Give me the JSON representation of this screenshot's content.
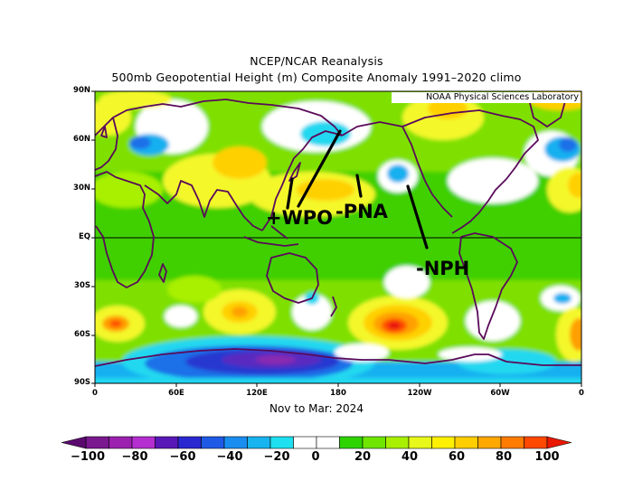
{
  "titles": {
    "line1": "NCEP/NCAR Reanalysis",
    "line2": "500mb Geopotential Height (m) Composite Anomaly 1991–2020 climo"
  },
  "credit": "NOAA Physical Sciences Laboratory",
  "period": "Nov to Mar: 2024",
  "y_axis_labels": [
    "90N",
    "60N",
    "30N",
    "EQ",
    "30S",
    "60S",
    "90S"
  ],
  "x_axis_labels": [
    "0",
    "60E",
    "120E",
    "180",
    "120W",
    "60W",
    "0"
  ],
  "annotations": {
    "wpo": "+WPO",
    "pna": "-PNA",
    "nph": "-NPH"
  },
  "colorbar": {
    "labels": [
      "−100",
      "−80",
      "−60",
      "−40",
      "−20",
      "0",
      "20",
      "40",
      "60",
      "80",
      "100"
    ],
    "colors": [
      "#5a0a6e",
      "#7a1890",
      "#9c20b0",
      "#b42ed0",
      "#5818b8",
      "#2a28d0",
      "#1e5ae6",
      "#1a8ef0",
      "#18b4f0",
      "#1ee0f0",
      "#ffffff",
      "#ffffff",
      "#2ed400",
      "#6ee600",
      "#a8f000",
      "#e8f81a",
      "#fff000",
      "#ffce00",
      "#ffa800",
      "#ff7c00",
      "#ff4800",
      "#e81800"
    ]
  },
  "map_colors": {
    "ocean_base": "#7fe000",
    "green": "#3fd000",
    "light_green": "#a8f000",
    "yellow": "#f4f82a",
    "gold": "#ffd000",
    "orange": "#ffa000",
    "red_orange": "#ff5000",
    "red": "#e81010",
    "white": "#ffffff",
    "cyan": "#20d8f0",
    "light_blue": "#18b0f0",
    "blue": "#1e70e8",
    "deep_blue": "#2838d0",
    "violet": "#5a2ac0",
    "purple": "#8a2ab0",
    "coast": "#5a0a5a"
  }
}
